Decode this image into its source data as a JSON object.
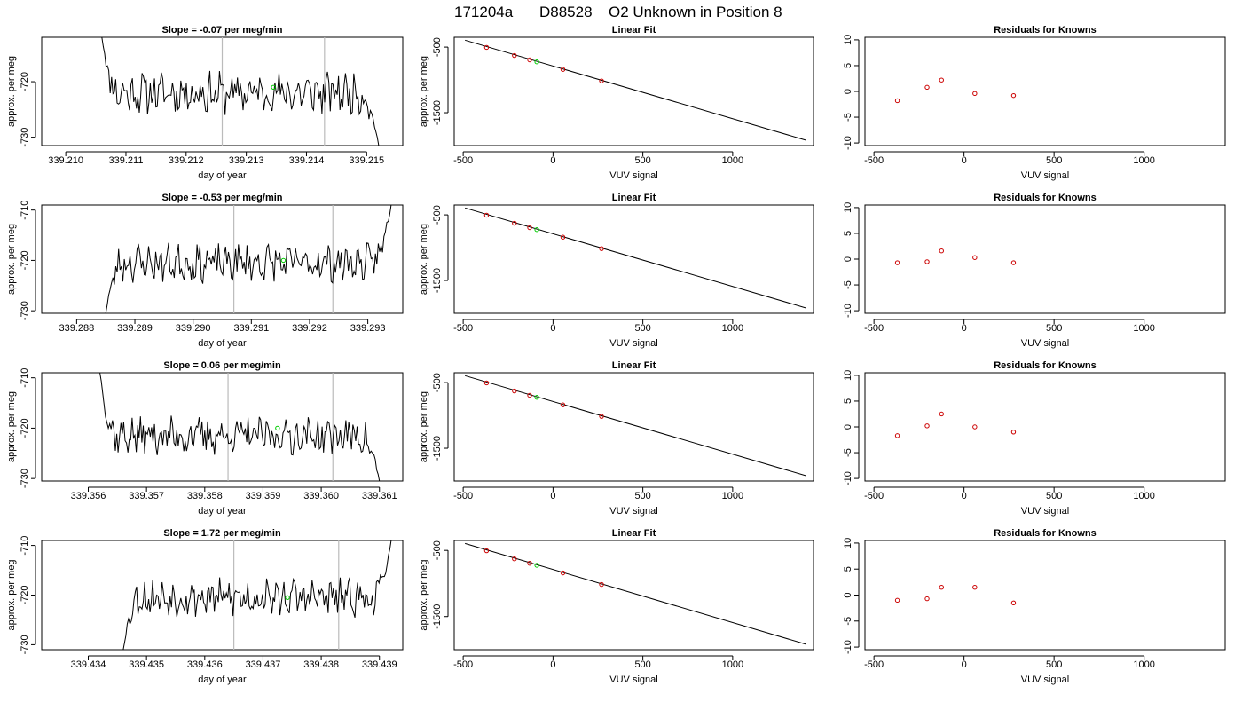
{
  "page": {
    "title_parts": [
      "171204a",
      "D88528",
      "O2 Unknown in Position  8"
    ]
  },
  "colors": {
    "trace": "#000000",
    "marker_known": "#cc0000",
    "marker_unknown": "#00cc00",
    "vline": "#bbbbbb",
    "frame": "#000000"
  },
  "chart_data": [
    {
      "type": "line",
      "row": 1,
      "title": "Slope =  -0.07  per meg/min",
      "xlabel": "day of year",
      "ylabel": "approx. per meg",
      "xlim": [
        339.2096,
        339.2156
      ],
      "ylim": [
        -731.5,
        -712
      ],
      "xticks": [
        339.21,
        339.211,
        339.212,
        339.213,
        339.214,
        339.215
      ],
      "xtick_labels": [
        "339.210",
        "339.211",
        "339.212",
        "339.213",
        "339.214",
        "339.215"
      ],
      "yticks": [
        -730,
        -720
      ],
      "ytick_labels": [
        "-730",
        "-720"
      ],
      "x_start": 339.2106,
      "x_end": 339.2152,
      "seed": 11,
      "base": -722,
      "amp": 3,
      "lead": -712,
      "tail": -731.5,
      "vlines": [
        339.2126,
        339.2143
      ],
      "marker": {
        "x": 339.21345,
        "y": -721
      }
    },
    {
      "type": "scatter",
      "row": 1,
      "title": "Linear Fit",
      "xlabel": "VUV signal",
      "ylabel": "approx. per meg",
      "xlim": [
        -550,
        1450
      ],
      "ylim": [
        -2000,
        -350
      ],
      "xticks": [
        -500,
        0,
        500,
        1000
      ],
      "xtick_labels": [
        "-500",
        "0",
        "500",
        "1000"
      ],
      "yticks": [
        -500,
        -1500
      ],
      "ytick_labels": [
        "-500",
        "-1500"
      ],
      "fit_line": {
        "x": [
          -490,
          1410
        ],
        "y": [
          -395,
          -1920
        ]
      },
      "knowns": {
        "x": [
          -370,
          -215,
          -130,
          55,
          270
        ],
        "y": [
          -505,
          -628,
          -695,
          -840,
          -1015
        ]
      },
      "unknown": {
        "x": [
          -90
        ],
        "y": [
          -725
        ]
      }
    },
    {
      "type": "scatter",
      "row": 1,
      "title": "Residuals for Knowns",
      "xlabel": "VUV signal",
      "ylabel": "",
      "xlim": [
        -550,
        1450
      ],
      "ylim": [
        -10.5,
        10.5
      ],
      "xticks": [
        -500,
        0,
        500,
        1000
      ],
      "xtick_labels": [
        "-500",
        "0",
        "500",
        "1000"
      ],
      "yticks": [
        -10,
        -5,
        0,
        5,
        10
      ],
      "ytick_labels": [
        "-10",
        "-5",
        "0",
        "5",
        "10"
      ],
      "knowns": {
        "x": [
          -370,
          -205,
          -125,
          60,
          275
        ],
        "y": [
          -1.8,
          0.8,
          2.2,
          -0.4,
          -0.8
        ]
      }
    },
    {
      "type": "line",
      "row": 2,
      "title": "Slope =  -0.53  per meg/min",
      "xlabel": "day of year",
      "ylabel": "approx. per meg",
      "xlim": [
        339.2874,
        339.2936
      ],
      "ylim": [
        -730.5,
        -709
      ],
      "xticks": [
        339.288,
        339.289,
        339.29,
        339.291,
        339.292,
        339.293
      ],
      "xtick_labels": [
        "339.288",
        "339.289",
        "339.290",
        "339.291",
        "339.292",
        "339.293"
      ],
      "yticks": [
        -730,
        -720,
        -710
      ],
      "ytick_labels": [
        "-730",
        "-720",
        "-710"
      ],
      "x_start": 339.2885,
      "x_end": 339.2934,
      "seed": 23,
      "base": -720.5,
      "amp": 3,
      "lead": -730.5,
      "tail": -709,
      "vlines": [
        339.2907,
        339.2924
      ],
      "marker": {
        "x": 339.29155,
        "y": -720
      }
    },
    {
      "type": "scatter",
      "row": 2,
      "title": "Linear Fit",
      "xlabel": "VUV signal",
      "ylabel": "approx. per meg",
      "xlim": [
        -550,
        1450
      ],
      "ylim": [
        -2000,
        -350
      ],
      "xticks": [
        -500,
        0,
        500,
        1000
      ],
      "xtick_labels": [
        "-500",
        "0",
        "500",
        "1000"
      ],
      "yticks": [
        -500,
        -1500
      ],
      "ytick_labels": [
        "-500",
        "-1500"
      ],
      "fit_line": {
        "x": [
          -490,
          1410
        ],
        "y": [
          -395,
          -1920
        ]
      },
      "knowns": {
        "x": [
          -370,
          -215,
          -130,
          55,
          270
        ],
        "y": [
          -505,
          -628,
          -695,
          -840,
          -1015
        ]
      },
      "unknown": {
        "x": [
          -90
        ],
        "y": [
          -725
        ]
      }
    },
    {
      "type": "scatter",
      "row": 2,
      "title": "Residuals for Knowns",
      "xlabel": "VUV signal",
      "ylabel": "",
      "xlim": [
        -550,
        1450
      ],
      "ylim": [
        -10.5,
        10.5
      ],
      "xticks": [
        -500,
        0,
        500,
        1000
      ],
      "xtick_labels": [
        "-500",
        "0",
        "500",
        "1000"
      ],
      "yticks": [
        -10,
        -5,
        0,
        5,
        10
      ],
      "ytick_labels": [
        "-10",
        "-5",
        "0",
        "5",
        "10"
      ],
      "knowns": {
        "x": [
          -370,
          -205,
          -125,
          60,
          275
        ],
        "y": [
          -0.7,
          -0.5,
          1.6,
          0.3,
          -0.7
        ]
      }
    },
    {
      "type": "line",
      "row": 3,
      "title": "Slope =  0.06  per meg/min",
      "xlabel": "day of year",
      "ylabel": "approx. per meg",
      "xlim": [
        339.3552,
        339.3614
      ],
      "ylim": [
        -730.5,
        -709
      ],
      "xticks": [
        339.356,
        339.357,
        339.358,
        339.359,
        339.36,
        339.361
      ],
      "xtick_labels": [
        "339.356",
        "339.357",
        "339.358",
        "339.359",
        "339.360",
        "339.361"
      ],
      "yticks": [
        -730,
        -720,
        -710
      ],
      "ytick_labels": [
        "-730",
        "-720",
        "-710"
      ],
      "x_start": 339.3562,
      "x_end": 339.361,
      "seed": 37,
      "base": -721.5,
      "amp": 3,
      "lead": -709,
      "tail": -730.5,
      "vlines": [
        339.3584,
        339.3602
      ],
      "marker": {
        "x": 339.35925,
        "y": -720
      }
    },
    {
      "type": "scatter",
      "row": 3,
      "title": "Linear Fit",
      "xlabel": "VUV signal",
      "ylabel": "approx. per meg",
      "xlim": [
        -550,
        1450
      ],
      "ylim": [
        -2000,
        -350
      ],
      "xticks": [
        -500,
        0,
        500,
        1000
      ],
      "xtick_labels": [
        "-500",
        "0",
        "500",
        "1000"
      ],
      "yticks": [
        -500,
        -1500
      ],
      "ytick_labels": [
        "-500",
        "-1500"
      ],
      "fit_line": {
        "x": [
          -490,
          1410
        ],
        "y": [
          -395,
          -1920
        ]
      },
      "knowns": {
        "x": [
          -370,
          -215,
          -130,
          55,
          270
        ],
        "y": [
          -505,
          -628,
          -695,
          -840,
          -1015
        ]
      },
      "unknown": {
        "x": [
          -90
        ],
        "y": [
          -725
        ]
      }
    },
    {
      "type": "scatter",
      "row": 3,
      "title": "Residuals for Knowns",
      "xlabel": "VUV signal",
      "ylabel": "",
      "xlim": [
        -550,
        1450
      ],
      "ylim": [
        -10.5,
        10.5
      ],
      "xticks": [
        -500,
        0,
        500,
        1000
      ],
      "xtick_labels": [
        "-500",
        "0",
        "500",
        "1000"
      ],
      "yticks": [
        -10,
        -5,
        0,
        5,
        10
      ],
      "ytick_labels": [
        "-10",
        "-5",
        "0",
        "5",
        "10"
      ],
      "knowns": {
        "x": [
          -370,
          -205,
          -125,
          60,
          275
        ],
        "y": [
          -1.7,
          0.2,
          2.5,
          0.0,
          -1.0
        ]
      }
    },
    {
      "type": "line",
      "row": 4,
      "title": "Slope =  1.72  per meg/min",
      "xlabel": "day of year",
      "ylabel": "approx. per meg",
      "xlim": [
        339.4332,
        339.4394
      ],
      "ylim": [
        -731,
        -709
      ],
      "xticks": [
        339.434,
        339.435,
        339.436,
        339.437,
        339.438,
        339.439
      ],
      "xtick_labels": [
        "339.434",
        "339.435",
        "339.436",
        "339.437",
        "339.438",
        "339.439"
      ],
      "yticks": [
        -730,
        -720,
        -710
      ],
      "ytick_labels": [
        "-730",
        "-720",
        "-710"
      ],
      "x_start": 339.4346,
      "x_end": 339.4392,
      "seed": 53,
      "base": -720.5,
      "amp": 3,
      "lead": -731,
      "tail": -709,
      "vlines": [
        339.4365,
        339.4383
      ],
      "marker": {
        "x": 339.43742,
        "y": -720.5
      }
    },
    {
      "type": "scatter",
      "row": 4,
      "title": "Linear Fit",
      "xlabel": "VUV signal",
      "ylabel": "approx. per meg",
      "xlim": [
        -550,
        1450
      ],
      "ylim": [
        -2000,
        -350
      ],
      "xticks": [
        -500,
        0,
        500,
        1000
      ],
      "xtick_labels": [
        "-500",
        "0",
        "500",
        "1000"
      ],
      "yticks": [
        -500,
        -1500
      ],
      "ytick_labels": [
        "-500",
        "-1500"
      ],
      "fit_line": {
        "x": [
          -490,
          1410
        ],
        "y": [
          -395,
          -1920
        ]
      },
      "knowns": {
        "x": [
          -370,
          -215,
          -130,
          55,
          270
        ],
        "y": [
          -505,
          -628,
          -695,
          -840,
          -1015
        ]
      },
      "unknown": {
        "x": [
          -90
        ],
        "y": [
          -725
        ]
      }
    },
    {
      "type": "scatter",
      "row": 4,
      "title": "Residuals for Knowns",
      "xlabel": "VUV signal",
      "ylabel": "",
      "xlim": [
        -550,
        1450
      ],
      "ylim": [
        -10.5,
        10.5
      ],
      "xticks": [
        -500,
        0,
        500,
        1000
      ],
      "xtick_labels": [
        "-500",
        "0",
        "500",
        "1000"
      ],
      "yticks": [
        -10,
        -5,
        0,
        5,
        10
      ],
      "ytick_labels": [
        "-10",
        "-5",
        "0",
        "5",
        "10"
      ],
      "knowns": {
        "x": [
          -370,
          -205,
          -125,
          60,
          275
        ],
        "y": [
          -1.0,
          -0.7,
          1.5,
          1.5,
          -1.5
        ]
      }
    }
  ]
}
